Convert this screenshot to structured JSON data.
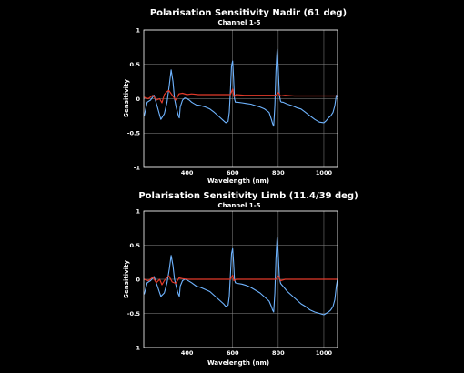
{
  "colors": {
    "background": "#000000",
    "series_blue": "#6fb4ff",
    "series_red": "#e23a2a",
    "grid": "#8a8a8a",
    "text": "#ffffff"
  },
  "chart_data": [
    {
      "type": "line",
      "title": "Polarisation Sensitivity Nadir (61 deg)",
      "subtitle": "Channel 1-5",
      "xlabel": "Wavelength (nm)",
      "ylabel": "Sensitivity",
      "xlim": [
        210,
        1060
      ],
      "ylim": [
        -1,
        1
      ],
      "xticks": [
        400,
        600,
        800,
        1000
      ],
      "yticks": [
        1,
        0.5,
        0,
        -0.5,
        -1
      ],
      "ytick_labels": [
        "1",
        "0.5",
        "0",
        "-0.5",
        "-1"
      ],
      "grid": true,
      "legend": "none",
      "series": [
        {
          "color": "#6fb4ff",
          "x": [
            212,
            225,
            240,
            255,
            270,
            285,
            300,
            312,
            322,
            330,
            338,
            345,
            352,
            358,
            362,
            366,
            370,
            380,
            390,
            400,
            410,
            420,
            440,
            460,
            480,
            500,
            520,
            540,
            560,
            570,
            580,
            585,
            590,
            595,
            600,
            604,
            608,
            612,
            620,
            640,
            660,
            680,
            700,
            720,
            740,
            760,
            770,
            775,
            780,
            785,
            790,
            795,
            800,
            805,
            810,
            815,
            820,
            840,
            860,
            880,
            900,
            920,
            940,
            960,
            980,
            1000,
            1010,
            1020,
            1030,
            1040,
            1048,
            1055,
            1060
          ],
          "y": [
            -0.25,
            -0.05,
            -0.02,
            0.05,
            -0.12,
            -0.3,
            -0.22,
            -0.05,
            0.2,
            0.42,
            0.25,
            0.0,
            -0.12,
            -0.2,
            -0.25,
            -0.28,
            -0.12,
            -0.02,
            0.01,
            0.0,
            -0.02,
            -0.05,
            -0.09,
            -0.1,
            -0.12,
            -0.15,
            -0.2,
            -0.26,
            -0.32,
            -0.35,
            -0.33,
            -0.2,
            0.1,
            0.48,
            0.55,
            0.3,
            0.0,
            -0.05,
            -0.05,
            -0.06,
            -0.07,
            -0.08,
            -0.1,
            -0.12,
            -0.15,
            -0.2,
            -0.3,
            -0.36,
            -0.4,
            -0.1,
            0.4,
            0.72,
            0.45,
            0.05,
            -0.04,
            -0.05,
            -0.05,
            -0.08,
            -0.1,
            -0.13,
            -0.15,
            -0.2,
            -0.25,
            -0.3,
            -0.34,
            -0.35,
            -0.32,
            -0.28,
            -0.25,
            -0.2,
            -0.1,
            0.05,
            0.02
          ]
        },
        {
          "color": "#e23a2a",
          "x": [
            212,
            230,
            250,
            265,
            280,
            290,
            300,
            310,
            320,
            335,
            350,
            365,
            380,
            400,
            420,
            450,
            500,
            550,
            590,
            600,
            605,
            615,
            650,
            700,
            750,
            790,
            800,
            810,
            830,
            870,
            920,
            970,
            1020,
            1060
          ],
          "y": [
            0.02,
            0.0,
            0.05,
            -0.02,
            0.0,
            -0.06,
            0.06,
            0.1,
            0.12,
            0.05,
            -0.02,
            0.07,
            0.08,
            0.06,
            0.07,
            0.06,
            0.06,
            0.06,
            0.06,
            0.14,
            0.03,
            0.06,
            0.05,
            0.05,
            0.05,
            0.05,
            0.09,
            0.04,
            0.05,
            0.04,
            0.04,
            0.04,
            0.04,
            0.04
          ]
        }
      ]
    },
    {
      "type": "line",
      "title": "Polarisation Sensitivity Limb (11.4/39 deg)",
      "subtitle": "Channel 1-5",
      "xlabel": "Wavelength (nm)",
      "ylabel": "Sensitivity",
      "xlim": [
        210,
        1060
      ],
      "ylim": [
        -1,
        1
      ],
      "xticks": [
        400,
        600,
        800,
        1000
      ],
      "yticks": [
        1,
        0.5,
        0,
        -0.5,
        -1
      ],
      "ytick_labels": [
        "1",
        "0.5",
        "0",
        "-0.5",
        "-1"
      ],
      "grid": true,
      "legend": "none",
      "series": [
        {
          "color": "#6fb4ff",
          "x": [
            212,
            225,
            240,
            255,
            270,
            285,
            300,
            312,
            322,
            330,
            338,
            345,
            352,
            358,
            362,
            366,
            370,
            380,
            390,
            400,
            410,
            420,
            440,
            460,
            480,
            500,
            520,
            540,
            560,
            570,
            580,
            585,
            590,
            595,
            600,
            604,
            608,
            612,
            620,
            640,
            660,
            680,
            700,
            720,
            740,
            760,
            770,
            775,
            780,
            785,
            790,
            795,
            800,
            805,
            810,
            815,
            820,
            840,
            860,
            880,
            900,
            920,
            940,
            960,
            980,
            1000,
            1010,
            1020,
            1030,
            1040,
            1048,
            1055,
            1060
          ],
          "y": [
            -0.22,
            -0.05,
            -0.02,
            0.04,
            -0.1,
            -0.25,
            -0.2,
            -0.05,
            0.15,
            0.35,
            0.2,
            0.0,
            -0.1,
            -0.18,
            -0.22,
            -0.25,
            -0.1,
            -0.02,
            0.0,
            -0.01,
            -0.03,
            -0.05,
            -0.1,
            -0.12,
            -0.15,
            -0.18,
            -0.24,
            -0.3,
            -0.36,
            -0.4,
            -0.38,
            -0.25,
            0.05,
            0.38,
            0.45,
            0.25,
            0.0,
            -0.05,
            -0.06,
            -0.07,
            -0.09,
            -0.12,
            -0.16,
            -0.2,
            -0.26,
            -0.32,
            -0.4,
            -0.45,
            -0.48,
            -0.2,
            0.3,
            0.62,
            0.38,
            0.02,
            -0.06,
            -0.08,
            -0.1,
            -0.18,
            -0.24,
            -0.3,
            -0.36,
            -0.4,
            -0.45,
            -0.48,
            -0.5,
            -0.52,
            -0.5,
            -0.48,
            -0.45,
            -0.4,
            -0.3,
            -0.1,
            0.0
          ]
        },
        {
          "color": "#e23a2a",
          "x": [
            212,
            230,
            250,
            265,
            280,
            290,
            300,
            310,
            320,
            335,
            350,
            365,
            380,
            400,
            420,
            450,
            500,
            550,
            590,
            600,
            605,
            615,
            650,
            700,
            750,
            790,
            800,
            810,
            830,
            870,
            920,
            970,
            1020,
            1060
          ],
          "y": [
            0.0,
            -0.02,
            0.03,
            -0.05,
            0.0,
            -0.08,
            -0.02,
            0.02,
            0.05,
            -0.04,
            -0.06,
            0.02,
            0.01,
            0.0,
            0.0,
            0.0,
            0.0,
            0.0,
            0.0,
            0.06,
            -0.02,
            0.0,
            0.0,
            0.0,
            0.0,
            0.0,
            0.05,
            -0.02,
            0.0,
            0.0,
            0.0,
            0.0,
            0.0,
            0.0
          ]
        }
      ]
    }
  ]
}
